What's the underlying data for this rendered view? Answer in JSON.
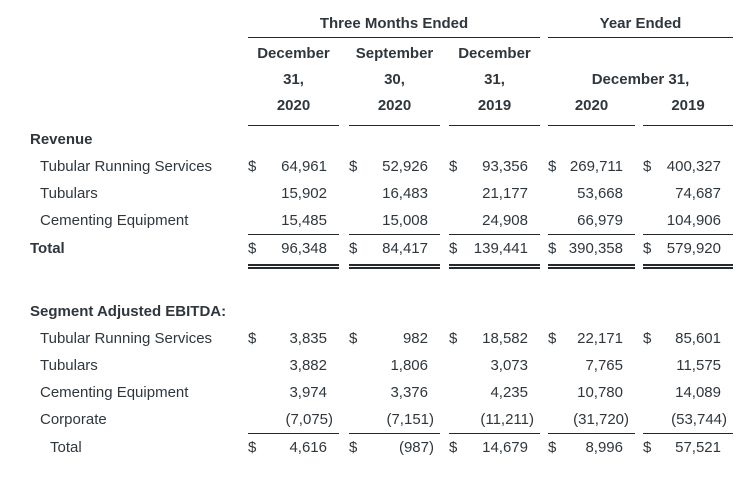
{
  "table": {
    "col_headers": {
      "group_three_months": "Three Months Ended",
      "group_year": "Year Ended",
      "c1": [
        "December",
        "31,",
        "2020"
      ],
      "c2": [
        "September",
        "30,",
        "2020"
      ],
      "c3": [
        "December",
        "31,",
        "2019"
      ],
      "year_sub": "December 31,",
      "c4": "2020",
      "c5": "2019"
    },
    "revenue": {
      "section_title": "Revenue",
      "rows": [
        {
          "label": "Tubular Running Services",
          "cur": "$",
          "v": [
            "64,961",
            "52,926",
            "93,356",
            "269,711",
            "400,327"
          ]
        },
        {
          "label": "Tubulars",
          "v": [
            "15,902",
            "16,483",
            "21,177",
            "53,668",
            "74,687"
          ]
        },
        {
          "label": "Cementing Equipment",
          "v": [
            "15,485",
            "15,008",
            "24,908",
            "66,979",
            "104,906"
          ]
        }
      ],
      "total": {
        "label": "Total",
        "cur": "$",
        "v": [
          "96,348",
          "84,417",
          "139,441",
          "390,358",
          "579,920"
        ]
      }
    },
    "ebitda": {
      "section_title": "Segment Adjusted EBITDA:",
      "rows": [
        {
          "label": "Tubular Running Services",
          "cur": "$",
          "v": [
            "3,835",
            "982",
            "18,582",
            "22,171",
            "85,601"
          ]
        },
        {
          "label": "Tubulars",
          "v": [
            "3,882",
            "1,806",
            "3,073",
            "7,765",
            "11,575"
          ]
        },
        {
          "label": "Cementing Equipment",
          "v": [
            "3,974",
            "3,376",
            "4,235",
            "10,780",
            "14,089"
          ]
        },
        {
          "label": "Corporate",
          "v": [
            "(7,075)",
            "(7,151)",
            "(11,211)",
            "(31,720)",
            "(53,744)"
          ]
        }
      ],
      "total": {
        "label": "Total",
        "cur": "$",
        "v": [
          "4,616",
          "(987)",
          "14,679",
          "8,996",
          "57,521"
        ]
      }
    }
  }
}
